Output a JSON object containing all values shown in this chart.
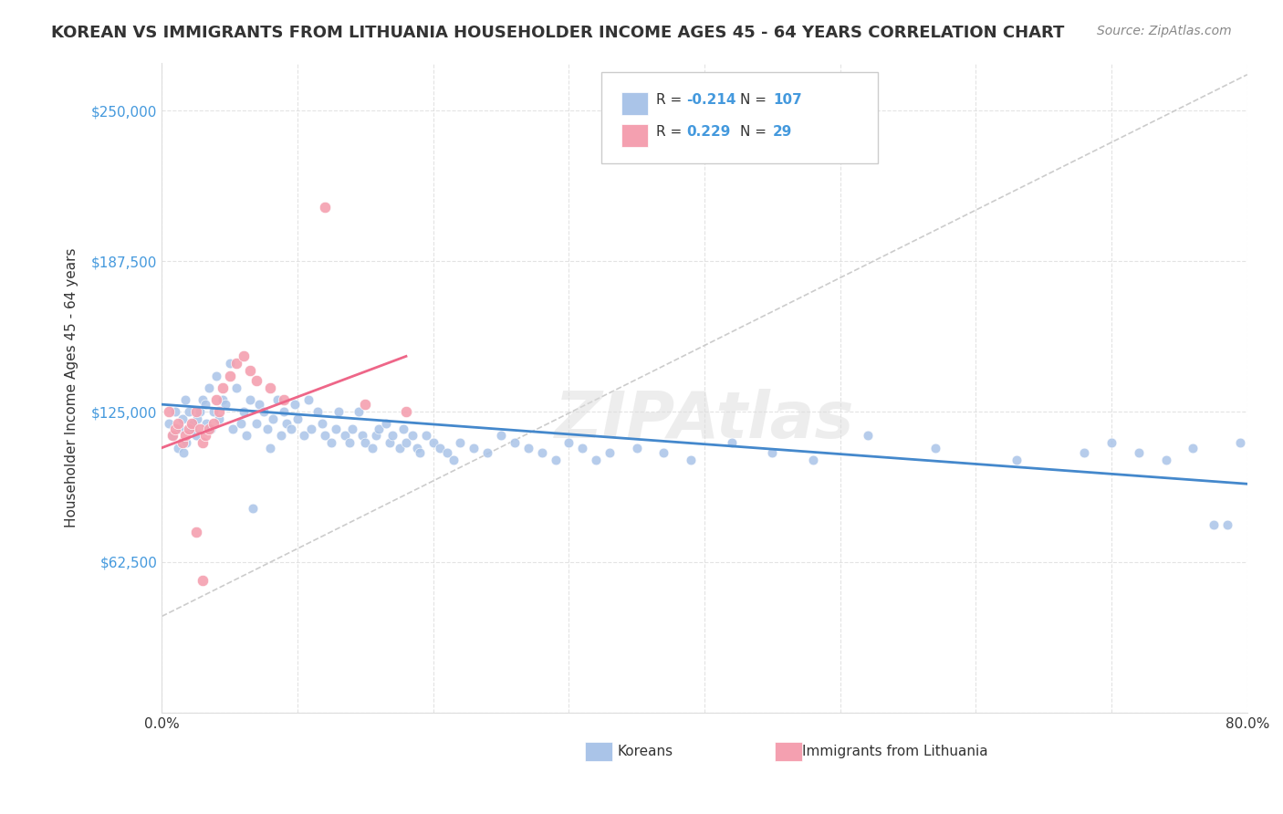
{
  "title": "KOREAN VS IMMIGRANTS FROM LITHUANIA HOUSEHOLDER INCOME AGES 45 - 64 YEARS CORRELATION CHART",
  "source": "Source: ZipAtlas.com",
  "xlabel": "",
  "ylabel": "Householder Income Ages 45 - 64 years",
  "xlim": [
    0.0,
    0.8
  ],
  "ylim": [
    0,
    270000
  ],
  "yticks": [
    0,
    62500,
    125000,
    187500,
    250000
  ],
  "ytick_labels": [
    "",
    "$62,500",
    "$125,000",
    "$187,500",
    "$250,000"
  ],
  "xticks": [
    0.0,
    0.1,
    0.2,
    0.3,
    0.4,
    0.5,
    0.6,
    0.7,
    0.8
  ],
  "xtick_labels": [
    "0.0%",
    "",
    "",
    "",
    "",
    "",
    "",
    "",
    "80.0%"
  ],
  "background_color": "#ffffff",
  "grid_color": "#dddddd",
  "watermark": "ZIPAtlas",
  "korean_color": "#aac4e8",
  "lithuanian_color": "#f4a0b0",
  "korean_line_color": "#4488cc",
  "lithuanian_line_color": "#ee6688",
  "korean_R": -0.214,
  "korean_N": 107,
  "lithuanian_R": 0.229,
  "lithuanian_N": 29,
  "legend_box_color": "#f0f0f0",
  "title_color": "#333333",
  "axis_label_color": "#333333",
  "ytick_color": "#4499dd",
  "xtick_color": "#333333",
  "korean_scatter_x": [
    0.005,
    0.008,
    0.01,
    0.012,
    0.013,
    0.015,
    0.016,
    0.017,
    0.018,
    0.02,
    0.022,
    0.023,
    0.025,
    0.026,
    0.028,
    0.03,
    0.032,
    0.033,
    0.035,
    0.036,
    0.038,
    0.04,
    0.042,
    0.045,
    0.047,
    0.05,
    0.052,
    0.055,
    0.058,
    0.06,
    0.062,
    0.065,
    0.067,
    0.07,
    0.072,
    0.075,
    0.078,
    0.08,
    0.082,
    0.085,
    0.088,
    0.09,
    0.092,
    0.095,
    0.098,
    0.1,
    0.105,
    0.108,
    0.11,
    0.115,
    0.118,
    0.12,
    0.125,
    0.128,
    0.13,
    0.135,
    0.138,
    0.14,
    0.145,
    0.148,
    0.15,
    0.155,
    0.158,
    0.16,
    0.165,
    0.168,
    0.17,
    0.175,
    0.178,
    0.18,
    0.185,
    0.188,
    0.19,
    0.195,
    0.2,
    0.205,
    0.21,
    0.215,
    0.22,
    0.23,
    0.24,
    0.25,
    0.26,
    0.27,
    0.28,
    0.29,
    0.3,
    0.31,
    0.32,
    0.33,
    0.35,
    0.37,
    0.39,
    0.42,
    0.45,
    0.48,
    0.52,
    0.57,
    0.63,
    0.68,
    0.7,
    0.72,
    0.74,
    0.76,
    0.775,
    0.785,
    0.795
  ],
  "korean_scatter_y": [
    120000,
    115000,
    125000,
    110000,
    118000,
    122000,
    108000,
    130000,
    112000,
    125000,
    118000,
    120000,
    115000,
    122000,
    125000,
    130000,
    128000,
    120000,
    135000,
    118000,
    125000,
    140000,
    122000,
    130000,
    128000,
    145000,
    118000,
    135000,
    120000,
    125000,
    115000,
    130000,
    85000,
    120000,
    128000,
    125000,
    118000,
    110000,
    122000,
    130000,
    115000,
    125000,
    120000,
    118000,
    128000,
    122000,
    115000,
    130000,
    118000,
    125000,
    120000,
    115000,
    112000,
    118000,
    125000,
    115000,
    112000,
    118000,
    125000,
    115000,
    112000,
    110000,
    115000,
    118000,
    120000,
    112000,
    115000,
    110000,
    118000,
    112000,
    115000,
    110000,
    108000,
    115000,
    112000,
    110000,
    108000,
    105000,
    112000,
    110000,
    108000,
    115000,
    112000,
    110000,
    108000,
    105000,
    112000,
    110000,
    105000,
    108000,
    110000,
    108000,
    105000,
    112000,
    108000,
    105000,
    115000,
    110000,
    105000,
    108000,
    112000,
    108000,
    105000,
    110000,
    78000,
    78000,
    112000
  ],
  "lithuanian_scatter_x": [
    0.005,
    0.008,
    0.01,
    0.012,
    0.015,
    0.017,
    0.02,
    0.022,
    0.025,
    0.028,
    0.03,
    0.032,
    0.035,
    0.038,
    0.04,
    0.042,
    0.045,
    0.05,
    0.055,
    0.06,
    0.065,
    0.07,
    0.08,
    0.09,
    0.12,
    0.15,
    0.18,
    0.03,
    0.025
  ],
  "lithuanian_scatter_y": [
    125000,
    115000,
    118000,
    120000,
    112000,
    115000,
    118000,
    120000,
    125000,
    118000,
    112000,
    115000,
    118000,
    120000,
    130000,
    125000,
    135000,
    140000,
    145000,
    148000,
    142000,
    138000,
    135000,
    130000,
    210000,
    128000,
    125000,
    55000,
    75000
  ],
  "korean_trend_x": [
    0.0,
    0.8
  ],
  "korean_trend_y": [
    128000,
    95000
  ],
  "lithuanian_trend_x": [
    0.0,
    0.18
  ],
  "lithuanian_trend_y": [
    110000,
    148000
  ],
  "dashed_trend_x": [
    0.0,
    0.8
  ],
  "dashed_trend_y": [
    40000,
    265000
  ]
}
